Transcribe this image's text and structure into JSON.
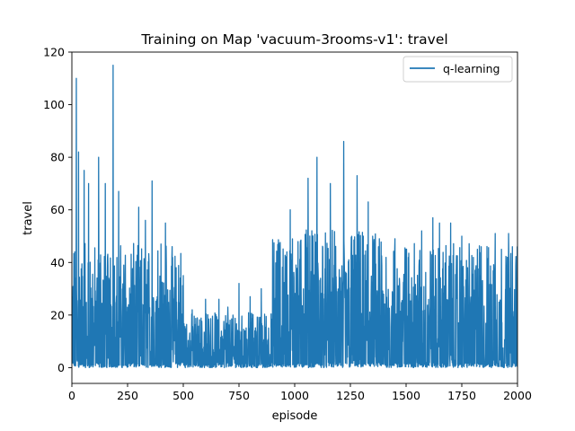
{
  "chart_data": {
    "type": "line",
    "title": "Training on Map 'vacuum-3rooms-v1': travel",
    "xlabel": "episode",
    "ylabel": "travel",
    "xlim": [
      0,
      2000
    ],
    "ylim": [
      -6,
      120
    ],
    "xticks": [
      0,
      250,
      500,
      750,
      1000,
      1250,
      1500,
      1750,
      2000
    ],
    "yticks": [
      0,
      20,
      40,
      60,
      80,
      100,
      120
    ],
    "grid": false,
    "legend": {
      "position": "top-right"
    },
    "series": [
      {
        "name": "q-learning",
        "color": "#1f77b4",
        "description_segments": [
          {
            "x_start": 0,
            "x_end": 250,
            "low": 0,
            "typical_high": 45,
            "peaks": [
              [
                20,
                110
              ],
              [
                30,
                82
              ],
              [
                55,
                75
              ],
              [
                75,
                70
              ],
              [
                120,
                80
              ],
              [
                150,
                70
              ],
              [
                185,
                115
              ],
              [
                210,
                67
              ]
            ]
          },
          {
            "x_start": 250,
            "x_end": 500,
            "low": 0,
            "typical_high": 45,
            "peaks": [
              [
                300,
                61
              ],
              [
                330,
                56
              ],
              [
                360,
                71
              ],
              [
                400,
                47
              ],
              [
                420,
                55
              ],
              [
                450,
                46
              ],
              [
                500,
                35
              ]
            ]
          },
          {
            "x_start": 500,
            "x_end": 900,
            "low": 0,
            "typical_high": 20,
            "peaks": [
              [
                540,
                22
              ],
              [
                600,
                26
              ],
              [
                660,
                26
              ],
              [
                700,
                23
              ],
              [
                750,
                32
              ],
              [
                800,
                27
              ],
              [
                850,
                30
              ]
            ]
          },
          {
            "x_start": 900,
            "x_end": 1400,
            "low": 0,
            "typical_high": 50,
            "peaks": [
              [
                980,
                60
              ],
              [
                1060,
                72
              ],
              [
                1100,
                80
              ],
              [
                1160,
                70
              ],
              [
                1220,
                86
              ],
              [
                1280,
                73
              ],
              [
                1330,
                63
              ],
              [
                1380,
                49
              ]
            ]
          },
          {
            "x_start": 1400,
            "x_end": 2000,
            "low": 0,
            "typical_high": 45,
            "peaks": [
              [
                1450,
                49
              ],
              [
                1500,
                45
              ],
              [
                1570,
                52
              ],
              [
                1620,
                57
              ],
              [
                1650,
                55
              ],
              [
                1700,
                55
              ],
              [
                1750,
                50
              ],
              [
                1820,
                45
              ],
              [
                1900,
                51
              ],
              [
                1960,
                51
              ],
              [
                2000,
                45
              ]
            ]
          }
        ]
      }
    ]
  }
}
